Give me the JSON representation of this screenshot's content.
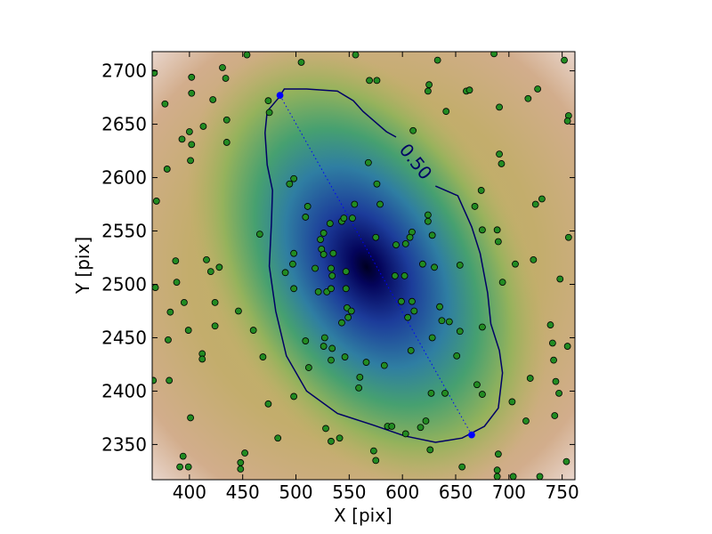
{
  "chart_data": {
    "type": "scatter",
    "xlabel": "X [pix]",
    "ylabel": "Y [pix]",
    "xlim": [
      365,
      762
    ],
    "ylim": [
      2317,
      2718
    ],
    "xticks": [
      400,
      450,
      500,
      550,
      600,
      650,
      700,
      750
    ],
    "yticks": [
      2350,
      2400,
      2450,
      2500,
      2550,
      2600,
      2650,
      2700
    ],
    "series": [
      {
        "color": "#228b22",
        "x": [
          367,
          377,
          379,
          369,
          368,
          382,
          380,
          381,
          366,
          387,
          388,
          395,
          399,
          400,
          402,
          402,
          402,
          401,
          393,
          413,
          422,
          431,
          434,
          435,
          435,
          416,
          428,
          420,
          424,
          424,
          412,
          412,
          401,
          394,
          391,
          399,
          448,
          448,
          452,
          446,
          460,
          466,
          469,
          474,
          483,
          454,
          474,
          475,
          494,
          498,
          490,
          498,
          498,
          497,
          505,
          511,
          509,
          509,
          512,
          498,
          528,
          533,
          541,
          556,
          569,
          576,
          568,
          576,
          555,
          553,
          543,
          545,
          532,
          526,
          523,
          524,
          526,
          535,
          518,
          533,
          534,
          529,
          521,
          533,
          547,
          547,
          548,
          552,
          549,
          543,
          527,
          526,
          534,
          533,
          546,
          560,
          559,
          566,
          583,
          579,
          575,
          594,
          603,
          609,
          607,
          593,
          602,
          599,
          609,
          611,
          605,
          608,
          624,
          624,
          619,
          628,
          630,
          635,
          637,
          644,
          628,
          627,
          622,
          626,
          617,
          603,
          586,
          590,
          575,
          573,
          640,
          651,
          654,
          654,
          633,
          625,
          624,
          641,
          660,
          663,
          610,
          668,
          674,
          675,
          690,
          689,
          675,
          656,
          670,
          675,
          690,
          689,
          689,
          694,
          691,
          693,
          691,
          686,
          703,
          706,
          704,
          718,
          720,
          716,
          723,
          725,
          731,
          727,
          729,
          739,
          741,
          742,
          744,
          747,
          743,
          748,
          752,
          756,
          755,
          756,
          755,
          754
        ],
        "y": [
          2698,
          2669,
          2608,
          2578,
          2497,
          2474,
          2448,
          2410,
          2410,
          2522,
          2502,
          2483,
          2457,
          2643,
          2679,
          2694,
          2631,
          2616,
          2636,
          2648,
          2673,
          2703,
          2693,
          2654,
          2633,
          2523,
          2516,
          2512,
          2483,
          2461,
          2435,
          2430,
          2375,
          2339,
          2329,
          2329,
          2333,
          2327,
          2342,
          2475,
          2457,
          2547,
          2432,
          2388,
          2356,
          2715,
          2672,
          2661,
          2594,
          2599,
          2511,
          2496,
          2529,
          2519,
          2708,
          2573,
          2563,
          2447,
          2422,
          2395,
          2365,
          2353,
          2356,
          2715,
          2691,
          2691,
          2614,
          2594,
          2575,
          2562,
          2559,
          2562,
          2557,
          2548,
          2542,
          2533,
          2528,
          2529,
          2515,
          2515,
          2508,
          2493,
          2493,
          2496,
          2512,
          2496,
          2478,
          2475,
          2469,
          2464,
          2450,
          2442,
          2440,
          2429,
          2432,
          2413,
          2403,
          2427,
          2424,
          2575,
          2544,
          2537,
          2538,
          2549,
          2544,
          2508,
          2508,
          2484,
          2484,
          2475,
          2469,
          2438,
          2565,
          2559,
          2519,
          2546,
          2516,
          2479,
          2466,
          2465,
          2450,
          2398,
          2372,
          2345,
          2366,
          2360,
          2367,
          2367,
          2335,
          2344,
          2398,
          2433,
          2518,
          2456,
          2710,
          2687,
          2681,
          2662,
          2681,
          2682,
          2644,
          2573,
          2588,
          2551,
          2540,
          2551,
          2460,
          2329,
          2406,
          2397,
          2341,
          2326,
          2320,
          2502,
          2622,
          2613,
          2666,
          2716,
          2390,
          2519,
          2320,
          2674,
          2412,
          2372,
          2523,
          2575,
          2580,
          2683,
          2320,
          2462,
          2445,
          2429,
          2409,
          2398,
          2377,
          2505,
          2710,
          2658,
          2653,
          2544,
          2442,
          2334
        ]
      },
      {
        "color": "#0000ff",
        "x": [
          485,
          665
        ],
        "y": [
          2677,
          2359
        ]
      }
    ],
    "contour": {
      "level": 0.5,
      "label": "0.50",
      "color": "#000066",
      "x": [
        631,
        652,
        665,
        673,
        680,
        683,
        691,
        694,
        690,
        677,
        656,
        631,
        602,
        573,
        539,
        510,
        491,
        481,
        475,
        477,
        478,
        473,
        471,
        473,
        484,
        489,
        510,
        539,
        554,
        563,
        585,
        594
      ],
      "y": [
        2592,
        2583,
        2554,
        2529,
        2492,
        2463,
        2438,
        2417,
        2384,
        2367,
        2356,
        2352,
        2358,
        2368,
        2379,
        2400,
        2433,
        2475,
        2517,
        2558,
        2588,
        2612,
        2642,
        2662,
        2675,
        2683,
        2683,
        2681,
        2672,
        2662,
        2643,
        2638
      ]
    }
  }
}
